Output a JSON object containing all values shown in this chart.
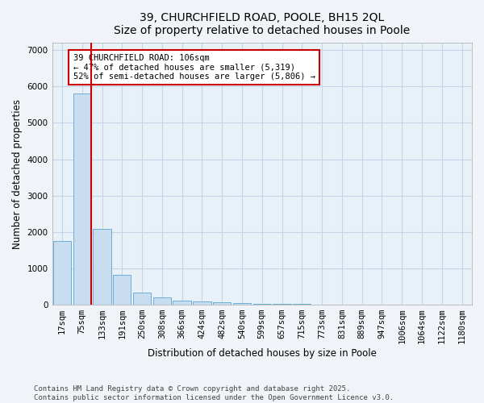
{
  "title_line1": "39, CHURCHFIELD ROAD, POOLE, BH15 2QL",
  "title_line2": "Size of property relative to detached houses in Poole",
  "xlabel": "Distribution of detached houses by size in Poole",
  "ylabel": "Number of detached properties",
  "categories": [
    "17sqm",
    "75sqm",
    "133sqm",
    "191sqm",
    "250sqm",
    "308sqm",
    "366sqm",
    "424sqm",
    "482sqm",
    "540sqm",
    "599sqm",
    "657sqm",
    "715sqm",
    "773sqm",
    "831sqm",
    "889sqm",
    "947sqm",
    "1006sqm",
    "1064sqm",
    "1122sqm",
    "1180sqm"
  ],
  "values": [
    1750,
    5820,
    2080,
    820,
    330,
    185,
    115,
    80,
    55,
    38,
    25,
    18,
    12,
    5,
    3,
    2,
    1,
    0,
    0,
    0,
    0
  ],
  "bar_color": "#c8ddf0",
  "bar_edge_color": "#6baed6",
  "vline_x": 1.47,
  "vline_color": "#cc0000",
  "annotation_text": "39 CHURCHFIELD ROAD: 106sqm\n← 47% of detached houses are smaller (5,319)\n52% of semi-detached houses are larger (5,806) →",
  "annotation_box_color": "#cc0000",
  "ylim": [
    0,
    7200
  ],
  "yticks": [
    0,
    1000,
    2000,
    3000,
    4000,
    5000,
    6000,
    7000
  ],
  "grid_color": "#c5d5e8",
  "bg_color": "#e8f0f8",
  "fig_bg_color": "#f0f4f8",
  "footnote": "Contains HM Land Registry data © Crown copyright and database right 2025.\nContains public sector information licensed under the Open Government Licence v3.0.",
  "title_fontsize": 10,
  "axis_label_fontsize": 8.5,
  "tick_fontsize": 7.5,
  "annotation_fontsize": 7.5,
  "footnote_fontsize": 6.5
}
